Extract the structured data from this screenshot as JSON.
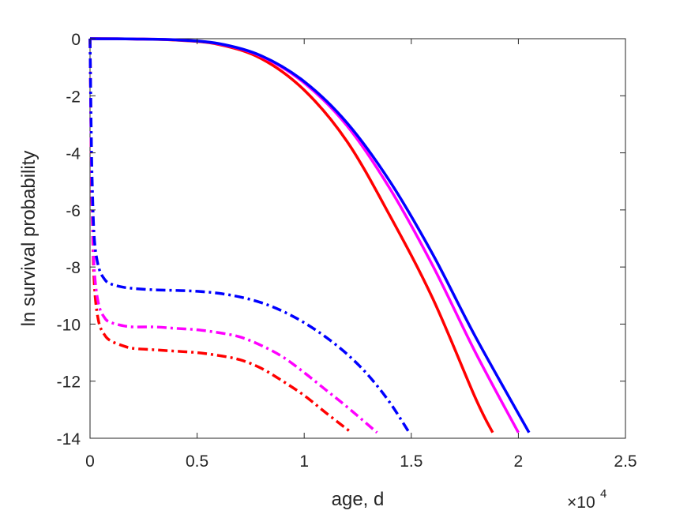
{
  "chart_data": {
    "type": "line",
    "title": "",
    "xlabel": "age, d",
    "ylabel": "ln survival probability",
    "x_exponent_label": "×10",
    "x_exponent_power": "4",
    "xlim": [
      0,
      25000
    ],
    "ylim": [
      -14,
      0
    ],
    "xticks": [
      0,
      5000,
      10000,
      15000,
      20000,
      25000
    ],
    "xtick_labels": [
      "0",
      "0.5",
      "1",
      "1.5",
      "2",
      "2.5"
    ],
    "yticks": [
      0,
      -2,
      -4,
      -6,
      -8,
      -10,
      -12,
      -14
    ],
    "ytick_labels": [
      "0",
      "-2",
      "-4",
      "-6",
      "-8",
      "-10",
      "-12",
      "-14"
    ],
    "grid": false,
    "legend": "none",
    "series": [
      {
        "color": "#ff0000",
        "style": "solid",
        "x": [
          0,
          2000,
          4000,
          6000,
          8000,
          10000,
          12000,
          14000,
          16000,
          18000,
          18800
        ],
        "y": [
          0,
          -0.01,
          -0.05,
          -0.2,
          -0.7,
          -1.8,
          -3.6,
          -6.2,
          -9.1,
          -12.6,
          -13.8
        ]
      },
      {
        "color": "#ff00ff",
        "style": "solid",
        "x": [
          0,
          2000,
          4000,
          6000,
          8000,
          10000,
          12000,
          14000,
          16000,
          18000,
          20000
        ],
        "y": [
          0,
          -0.01,
          -0.04,
          -0.18,
          -0.62,
          -1.55,
          -3.05,
          -5.25,
          -7.95,
          -11.0,
          -13.8
        ]
      },
      {
        "color": "#0000ff",
        "style": "solid",
        "x": [
          0,
          2000,
          4000,
          6000,
          8000,
          10000,
          12000,
          14000,
          16000,
          18000,
          20500
        ],
        "y": [
          0,
          -0.01,
          -0.04,
          -0.17,
          -0.6,
          -1.5,
          -2.95,
          -5.0,
          -7.55,
          -10.45,
          -13.8
        ]
      },
      {
        "color": "#ff0000",
        "style": "dashdot",
        "x": [
          0,
          50,
          100,
          200,
          400,
          700,
          1000,
          1500,
          2000,
          3000,
          4000,
          5000,
          6000,
          7000,
          8000,
          9000,
          10000,
          11000,
          12200
        ],
        "y": [
          0,
          -3.5,
          -6.0,
          -8.6,
          -9.9,
          -10.4,
          -10.6,
          -10.75,
          -10.85,
          -10.9,
          -10.95,
          -11.0,
          -11.1,
          -11.25,
          -11.55,
          -12.0,
          -12.5,
          -13.1,
          -13.8
        ]
      },
      {
        "color": "#ff00ff",
        "style": "dashdot",
        "x": [
          0,
          50,
          100,
          200,
          400,
          700,
          1000,
          1500,
          2000,
          3000,
          4000,
          5000,
          6000,
          7000,
          8000,
          9000,
          10000,
          11000,
          12000,
          13400
        ],
        "y": [
          0,
          -3.5,
          -5.8,
          -8.1,
          -9.3,
          -9.8,
          -9.95,
          -10.05,
          -10.1,
          -10.1,
          -10.15,
          -10.2,
          -10.3,
          -10.45,
          -10.75,
          -11.15,
          -11.7,
          -12.3,
          -12.9,
          -13.8
        ]
      },
      {
        "color": "#0000ff",
        "style": "dashdot",
        "x": [
          0,
          50,
          100,
          200,
          400,
          700,
          1000,
          1500,
          2000,
          3000,
          4000,
          5000,
          6000,
          7000,
          8000,
          9000,
          10000,
          11000,
          12000,
          13000,
          14000,
          14900
        ],
        "y": [
          0,
          -3.0,
          -5.0,
          -7.0,
          -8.0,
          -8.45,
          -8.6,
          -8.7,
          -8.75,
          -8.8,
          -8.82,
          -8.85,
          -8.92,
          -9.05,
          -9.25,
          -9.55,
          -9.95,
          -10.45,
          -11.05,
          -11.8,
          -12.75,
          -13.8
        ]
      }
    ]
  }
}
